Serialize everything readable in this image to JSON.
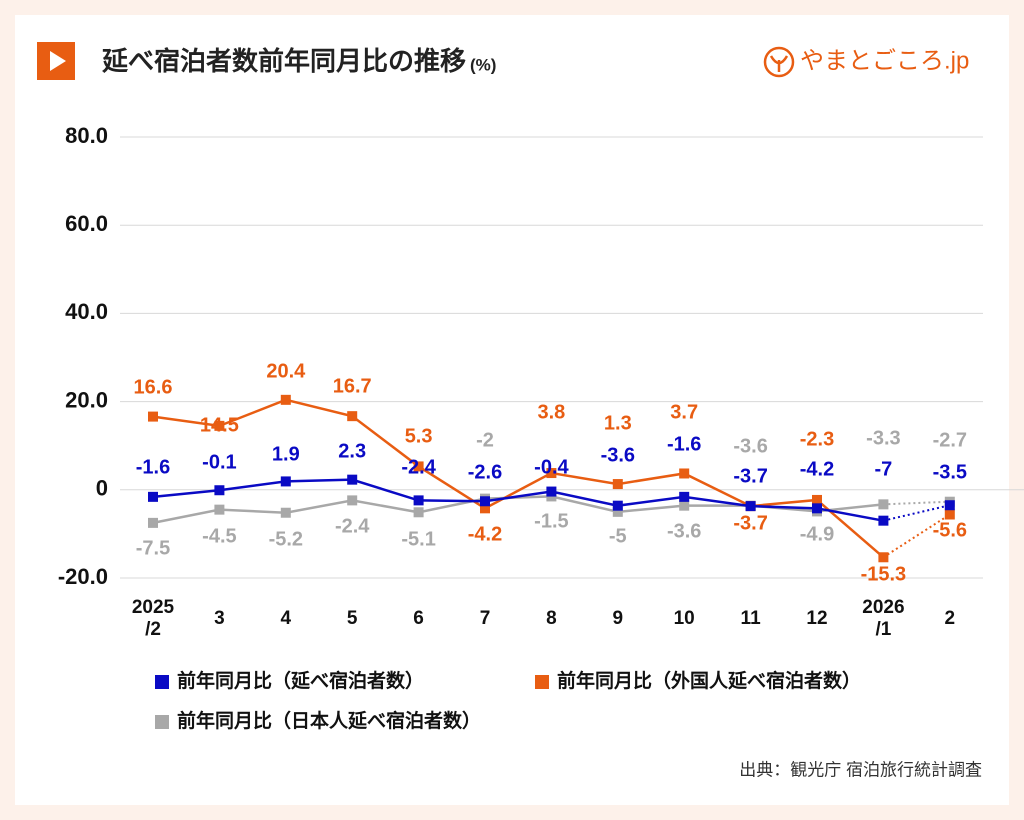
{
  "chart_data": {
    "type": "line",
    "title": "延べ宿泊者数前年同月比の推移",
    "title_unit": "(%)",
    "brand": "やまとごころ.jp",
    "source": "出典：観光庁 宿泊旅行統計調査",
    "categories": [
      "2025\n/2",
      "3",
      "4",
      "5",
      "6",
      "7",
      "8",
      "9",
      "10",
      "11",
      "12",
      "2026\n/1",
      "2"
    ],
    "series": [
      {
        "name": "前年同月比（延べ宿泊者数）",
        "color": "#0a0ac4",
        "values": [
          -1.6,
          -0.1,
          1.9,
          2.3,
          -2.4,
          -2.6,
          -0.4,
          -3.6,
          -1.6,
          -3.7,
          -4.2,
          -7.0,
          -3.5
        ]
      },
      {
        "name": "前年同月比（外国人延べ宿泊者数）",
        "color": "#e85d12",
        "values": [
          16.6,
          14.5,
          20.4,
          16.7,
          5.3,
          -4.2,
          3.8,
          1.3,
          3.7,
          -3.7,
          -2.3,
          -15.3,
          -5.6
        ]
      },
      {
        "name": "前年同月比（日本人延べ宿泊者数）",
        "color": "#a8a8a8",
        "values": [
          -7.5,
          -4.5,
          -5.2,
          -2.4,
          -5.1,
          -2.0,
          -1.5,
          -5.0,
          -3.6,
          -3.6,
          -4.9,
          -3.3,
          -2.7
        ]
      }
    ],
    "ylim": [
      -20,
      80
    ],
    "yticks": [
      {
        "value": -20,
        "label": "-20.0"
      },
      0,
      {
        "value": 20,
        "label": "20.0"
      },
      {
        "value": 40,
        "label": "40.0"
      },
      {
        "value": 60,
        "label": "60.0"
      },
      {
        "value": 80,
        "label": "80.0"
      }
    ],
    "grid": true,
    "last_segment_dotted": true,
    "legend": "bottom"
  }
}
